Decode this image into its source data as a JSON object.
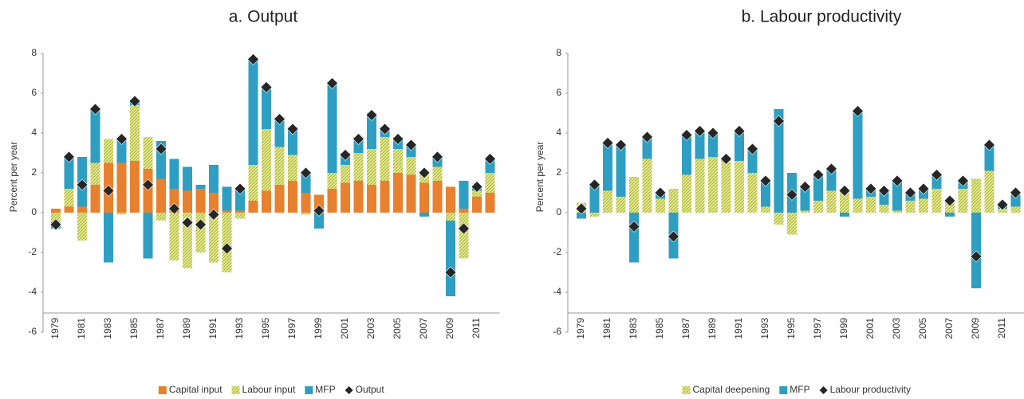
{
  "chart_data": [
    {
      "type": "bar",
      "stacked": true,
      "title": "a.   Output",
      "ylabel": "Percent per year",
      "categories": [
        "1979",
        null,
        "1981",
        null,
        "1983",
        null,
        "1985",
        null,
        "1987",
        null,
        "1989",
        null,
        "1991",
        null,
        "1993",
        null,
        "1995",
        null,
        "1997",
        null,
        "1999",
        null,
        "2001",
        null,
        "2003",
        null,
        "2005",
        null,
        "2007",
        null,
        "2009",
        null,
        "2011",
        null
      ],
      "ylim": [
        -6,
        8
      ],
      "yticks": [
        -6,
        -4,
        -2,
        0,
        2,
        4,
        6,
        8
      ],
      "legend": "bottom",
      "series": [
        {
          "name": "Capital input",
          "type": "bar",
          "color": "#e8812f",
          "values": [
            0.2,
            0.3,
            0.3,
            1.4,
            2.5,
            2.5,
            2.6,
            2.2,
            1.7,
            1.2,
            1.1,
            1.2,
            1.0,
            0.1,
            0.1,
            0.6,
            1.1,
            1.4,
            1.6,
            1.0,
            0.9,
            1.2,
            1.5,
            1.6,
            1.4,
            1.6,
            2.0,
            1.9,
            1.5,
            1.6,
            1.3,
            0.2,
            0.8,
            1.0
          ]
        },
        {
          "name": "Labour input",
          "type": "bar",
          "color": "#dde27a",
          "pattern": "hatch",
          "values": [
            -0.5,
            0.9,
            -1.4,
            1.1,
            1.2,
            -0.1,
            2.8,
            1.6,
            -0.4,
            -2.4,
            -2.8,
            -2.0,
            -2.5,
            -3.0,
            -0.3,
            1.8,
            3.1,
            1.9,
            1.3,
            -0.1,
            0.0,
            0.8,
            0.9,
            1.4,
            1.8,
            2.2,
            1.2,
            0.9,
            0.6,
            0.7,
            -0.4,
            -2.3,
            0.3,
            1.0
          ]
        },
        {
          "name": "MFP",
          "type": "bar",
          "color": "#2e9fc2",
          "values": [
            -0.3,
            1.6,
            2.5,
            2.7,
            -2.5,
            1.2,
            0.3,
            -2.3,
            1.9,
            1.5,
            1.2,
            0.2,
            1.4,
            1.2,
            1.1,
            5.4,
            2.1,
            1.5,
            1.4,
            1.0,
            -0.8,
            4.6,
            0.6,
            0.8,
            1.8,
            0.5,
            0.6,
            0.6,
            -0.2,
            0.5,
            -3.8,
            1.4,
            0.2,
            0.7
          ]
        },
        {
          "name": "Output",
          "type": "scatter",
          "color": "#262626",
          "values": [
            -0.6,
            2.8,
            1.4,
            5.2,
            1.1,
            3.7,
            5.6,
            1.4,
            3.2,
            0.2,
            -0.5,
            -0.6,
            -0.1,
            -1.8,
            1.2,
            7.7,
            6.3,
            4.7,
            4.2,
            2.0,
            0.1,
            6.5,
            2.9,
            3.7,
            4.9,
            4.2,
            3.7,
            3.4,
            2.0,
            2.8,
            -3.0,
            -0.8,
            1.3,
            2.7
          ]
        }
      ]
    },
    {
      "type": "bar",
      "stacked": true,
      "title": "b.   Labour productivity",
      "ylabel": "Percent per year",
      "categories": [
        "1979",
        null,
        "1981",
        null,
        "1983",
        null,
        "1985",
        null,
        "1987",
        null,
        "1989",
        null,
        "1991",
        null,
        "1993",
        null,
        "1995",
        null,
        "1997",
        null,
        "1999",
        null,
        "2001",
        null,
        "2003",
        null,
        "2005",
        null,
        "2007",
        null,
        "2009",
        null,
        "2011",
        null
      ],
      "ylim": [
        -6,
        8
      ],
      "yticks": [
        -6,
        -4,
        -2,
        0,
        2,
        4,
        6,
        8
      ],
      "legend": "bottom",
      "series": [
        {
          "name": "Capital deepening",
          "type": "bar",
          "color": "#dde27a",
          "pattern": "hatch",
          "values": [
            0.5,
            -0.2,
            1.1,
            0.8,
            1.8,
            2.7,
            0.7,
            1.2,
            1.9,
            2.7,
            2.8,
            2.6,
            2.6,
            2.0,
            0.3,
            -0.6,
            -1.1,
            0.1,
            0.6,
            1.1,
            1.1,
            0.7,
            0.8,
            0.4,
            0.1,
            0.6,
            0.7,
            1.2,
            0.7,
            1.2,
            1.7,
            2.1,
            0.2,
            0.3
          ]
        },
        {
          "name": "MFP",
          "type": "bar",
          "color": "#2e9fc2",
          "values": [
            -0.3,
            1.4,
            2.4,
            2.6,
            -2.5,
            1.1,
            0.3,
            -2.3,
            2.0,
            1.4,
            1.2,
            0.1,
            1.5,
            1.2,
            1.3,
            5.2,
            2.0,
            1.2,
            1.3,
            1.1,
            -0.2,
            4.4,
            0.4,
            0.7,
            1.5,
            0.4,
            0.5,
            0.7,
            -0.2,
            0.4,
            -3.8,
            1.3,
            0.2,
            0.6
          ]
        },
        {
          "name": "Labour productivity",
          "type": "scatter",
          "color": "#262626",
          "values": [
            0.2,
            1.4,
            3.5,
            3.4,
            -0.7,
            3.8,
            1.0,
            -1.2,
            3.9,
            4.1,
            4.0,
            2.7,
            4.1,
            3.2,
            1.6,
            4.6,
            0.9,
            1.3,
            1.9,
            2.2,
            1.1,
            5.1,
            1.2,
            1.1,
            1.6,
            1.0,
            1.2,
            1.9,
            0.6,
            1.6,
            -2.2,
            3.4,
            0.4,
            1.0
          ]
        }
      ]
    }
  ]
}
